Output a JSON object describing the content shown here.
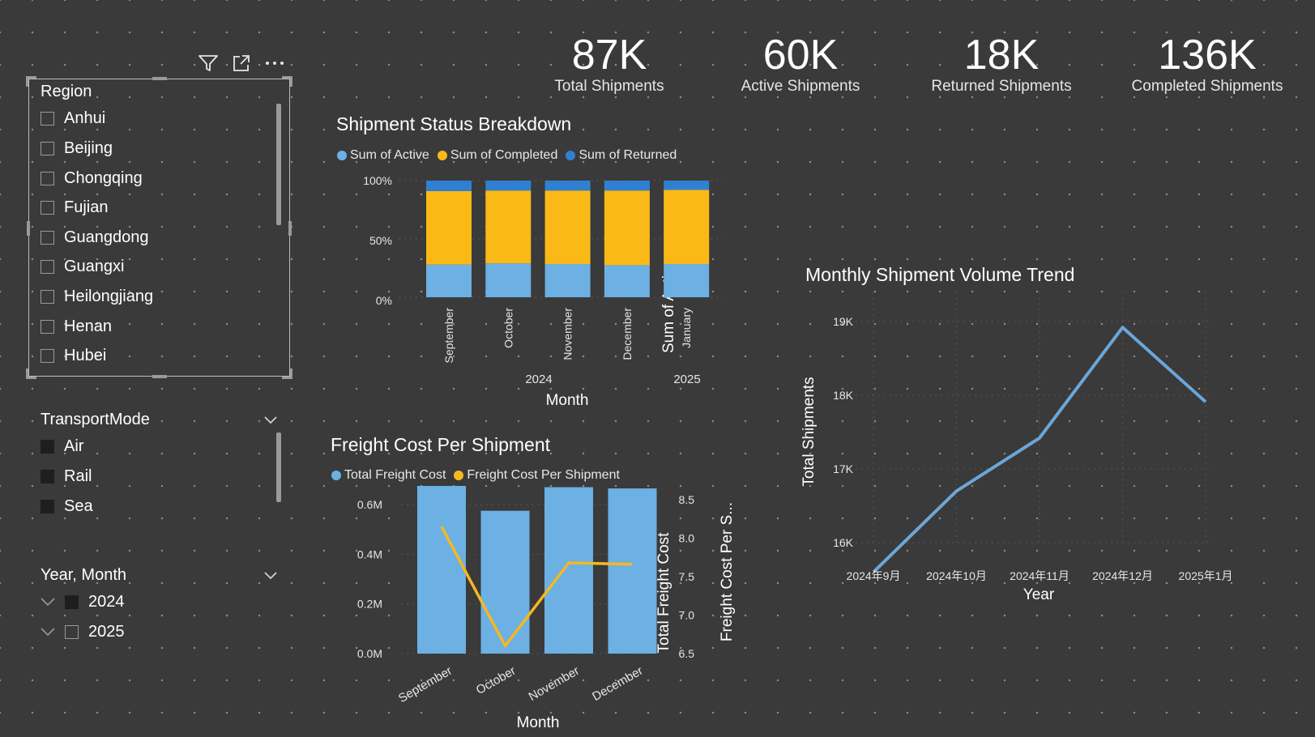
{
  "colors": {
    "background": "#3a3a3a",
    "active": "#6cb0e4",
    "completed": "#fbb918",
    "returned": "#2f80d1",
    "freight_bar": "#6cb0e4",
    "freight_line": "#f5b820",
    "trend_line": "#6ca6d8"
  },
  "kpis": [
    {
      "value": "87K",
      "label": "Total Shipments"
    },
    {
      "value": "60K",
      "label": "Active Shipments"
    },
    {
      "value": "18K",
      "label": "Returned Shipments"
    },
    {
      "value": "136K",
      "label": "Completed Shipments"
    }
  ],
  "toolbar": {
    "icons": [
      "filter-icon",
      "focus-mode-icon",
      "more-options-icon"
    ]
  },
  "region_slicer": {
    "title": "Region",
    "items": [
      "Anhui",
      "Beijing",
      "Chongqing",
      "Fujian",
      "Guangdong",
      "Guangxi",
      "Heilongjiang",
      "Henan",
      "Hubei"
    ]
  },
  "transport_slicer": {
    "title": "TransportMode",
    "items": [
      "Air",
      "Rail",
      "Sea"
    ]
  },
  "yearmonth_slicer": {
    "title": "Year, Month",
    "items": [
      {
        "label": "2024",
        "checked": true
      },
      {
        "label": "2025",
        "checked": false
      }
    ]
  },
  "status_chart": {
    "title": "Shipment Status Breakdown",
    "legend": [
      "Sum of Active",
      "Sum of Completed",
      "Sum of Returned"
    ],
    "ylabel": "Sum of Active...",
    "xlabel": "Month",
    "yticks": [
      "100%",
      "50%",
      "0%"
    ],
    "year_labels": [
      "2024",
      "2025"
    ]
  },
  "freight_chart": {
    "title": "Freight Cost Per Shipment",
    "legend": [
      "Total Freight Cost",
      "Freight Cost Per Shipment"
    ],
    "ylabel": "Total Freight Cost",
    "y2label": "Freight Cost Per S...",
    "xlabel": "Month",
    "yticks": [
      "0.6M",
      "0.4M",
      "0.2M",
      "0.0M"
    ],
    "y2ticks": [
      "8.5",
      "8.0",
      "7.5",
      "7.0",
      "6.5"
    ]
  },
  "trend_chart": {
    "title": "Monthly Shipment Volume Trend",
    "ylabel": "Total Shipments",
    "xlabel": "Year",
    "yticks": [
      "19K",
      "18K",
      "17K",
      "16K"
    ]
  },
  "chart_data": [
    {
      "type": "bar",
      "stacked": "100%",
      "title": "Shipment Status Breakdown",
      "categories": [
        "September",
        "October",
        "November",
        "December",
        "January"
      ],
      "years": [
        "2024",
        "2024",
        "2024",
        "2024",
        "2025"
      ],
      "series": [
        {
          "name": "Sum of Active",
          "values": [
            0.28,
            0.29,
            0.285,
            0.275,
            0.285
          ]
        },
        {
          "name": "Sum of Completed",
          "values": [
            0.63,
            0.625,
            0.63,
            0.64,
            0.635
          ]
        },
        {
          "name": "Sum of Returned",
          "values": [
            0.09,
            0.085,
            0.085,
            0.085,
            0.08
          ]
        }
      ],
      "ylim": [
        0,
        1
      ],
      "xlabel": "Month",
      "ylabel": "Sum of Active..."
    },
    {
      "type": "bar",
      "title": "Freight Cost Per Shipment",
      "categories": [
        "September",
        "October",
        "November",
        "December"
      ],
      "series": [
        {
          "name": "Total Freight Cost",
          "type": "bar",
          "axis": "left",
          "values": [
            680000,
            575000,
            670000,
            665000
          ]
        },
        {
          "name": "Freight Cost Per Shipment",
          "type": "line",
          "axis": "right",
          "values": [
            8.15,
            6.6,
            7.68,
            7.66
          ]
        }
      ],
      "ylim": [
        0,
        700000
      ],
      "y2lim": [
        6.5,
        8.5
      ],
      "xlabel": "Month",
      "ylabel": "Total Freight Cost",
      "y2label": "Freight Cost Per S..."
    },
    {
      "type": "line",
      "title": "Monthly Shipment Volume Trend",
      "x": [
        "2024年9月",
        "2024年10月",
        "2024年11月",
        "2024年12月",
        "2025年1月"
      ],
      "series": [
        {
          "name": "Total Shipments",
          "values": [
            15600,
            16700,
            17420,
            18920,
            17910
          ]
        }
      ],
      "ylim": [
        15500,
        19100
      ],
      "xlabel": "Year",
      "ylabel": "Total Shipments"
    }
  ]
}
